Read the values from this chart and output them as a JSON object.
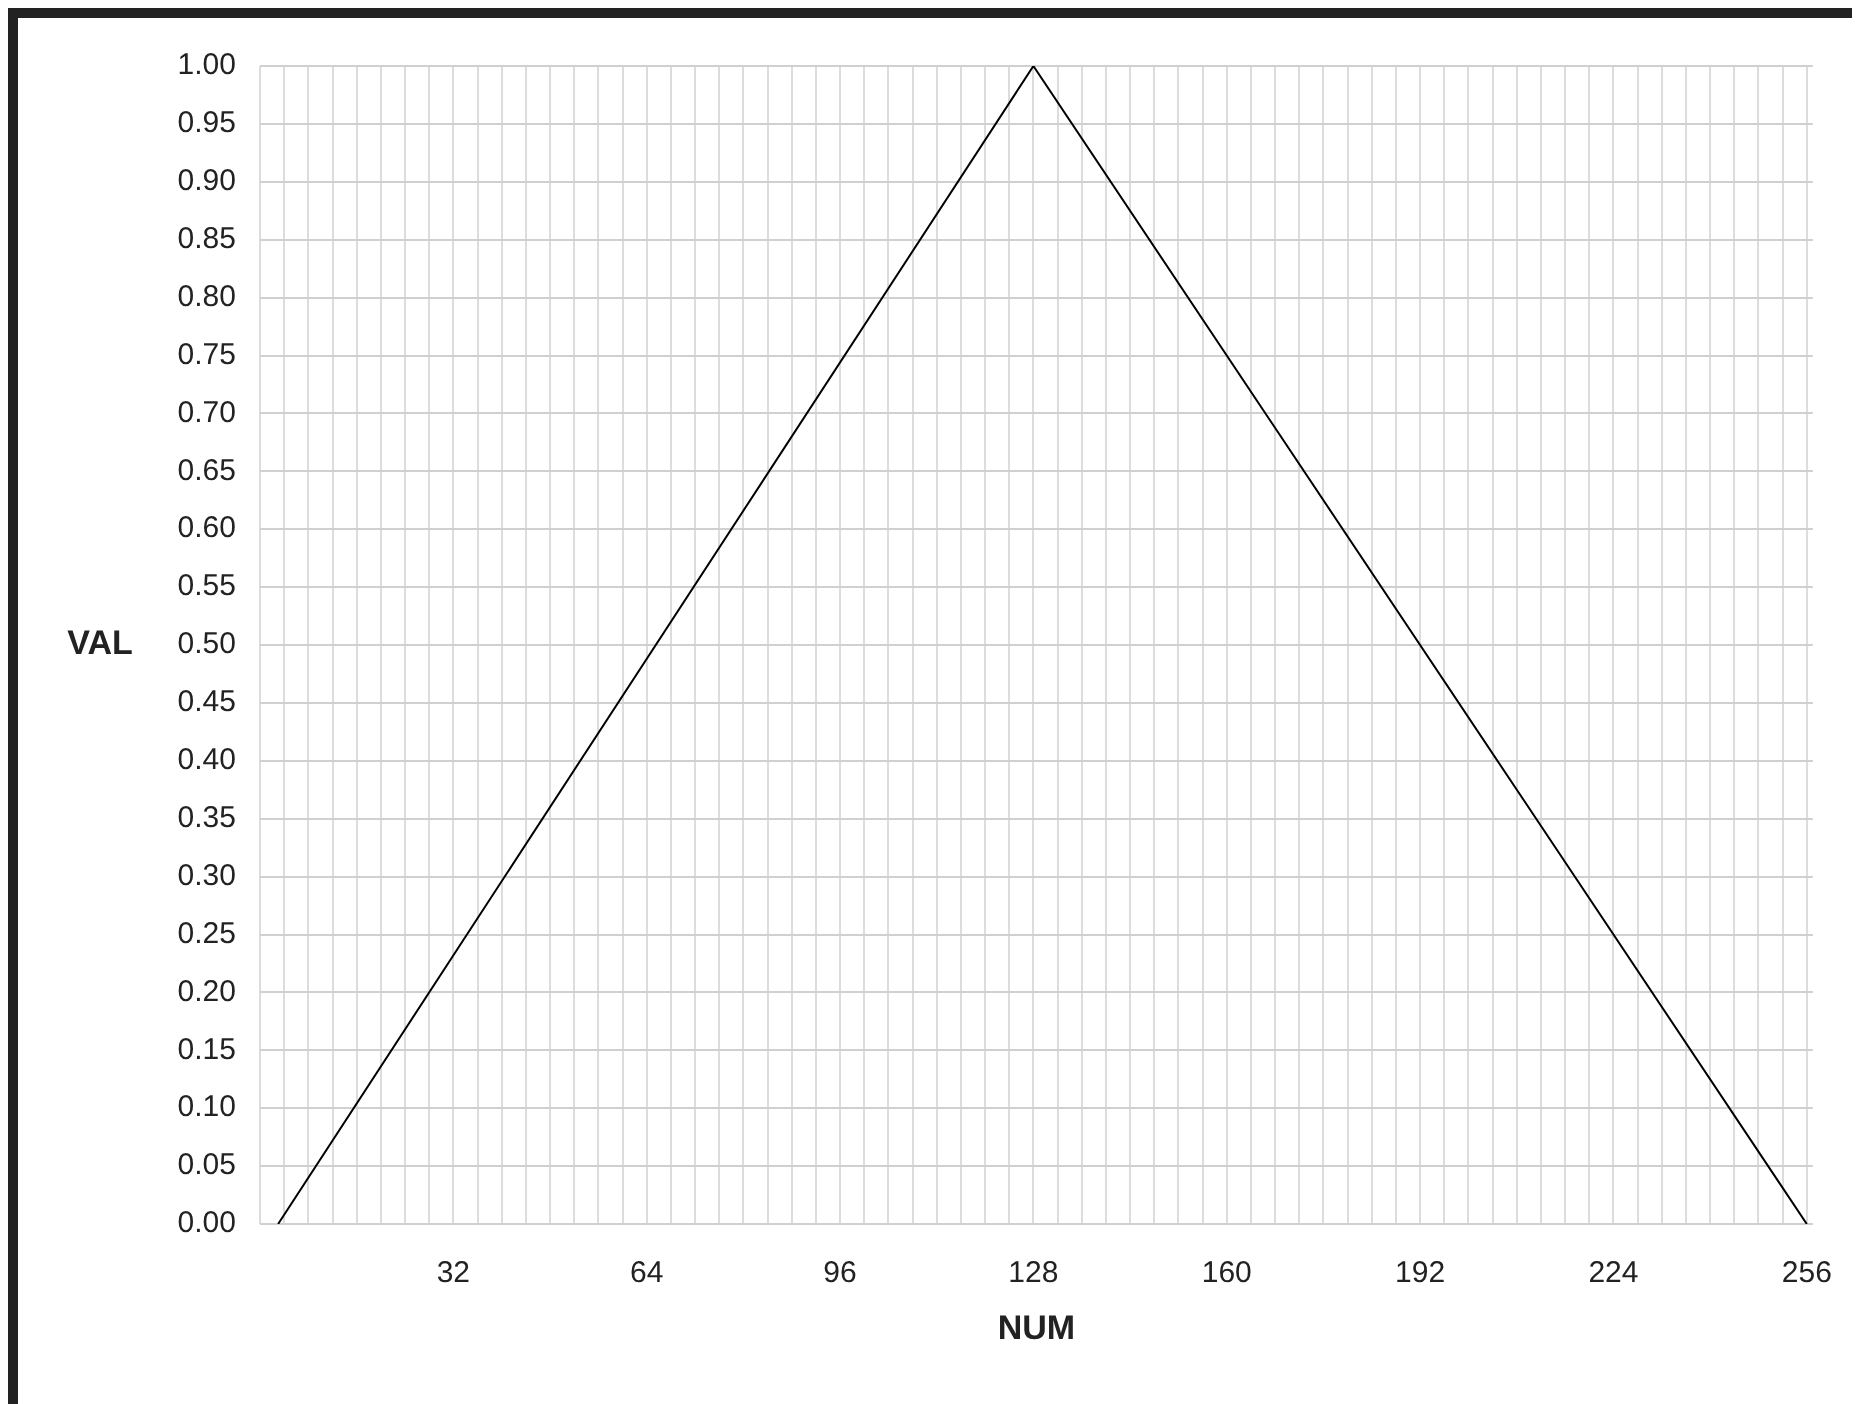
{
  "chart_data": {
    "type": "line",
    "xlabel": "NUM",
    "ylabel": "VAL",
    "x": [
      3,
      128,
      256
    ],
    "series": [
      {
        "color": "#000000",
        "values": [
          0,
          1,
          0
        ]
      }
    ],
    "xlim": [
      0,
      257
    ],
    "xticks": [
      {
        "value": 0,
        "label": null
      },
      {
        "value": 4,
        "label": null
      },
      {
        "value": 8,
        "label": null
      },
      {
        "value": 12,
        "label": null
      },
      {
        "value": 16,
        "label": null
      },
      {
        "value": 20,
        "label": null
      },
      {
        "value": 24,
        "label": null
      },
      {
        "value": 28,
        "label": null
      },
      32,
      {
        "value": 36,
        "label": null
      },
      {
        "value": 40,
        "label": null
      },
      {
        "value": 44,
        "label": null
      },
      {
        "value": 48,
        "label": null
      },
      {
        "value": 52,
        "label": null
      },
      {
        "value": 56,
        "label": null
      },
      {
        "value": 60,
        "label": null
      },
      64,
      {
        "value": 68,
        "label": null
      },
      {
        "value": 72,
        "label": null
      },
      {
        "value": 76,
        "label": null
      },
      {
        "value": 80,
        "label": null
      },
      {
        "value": 84,
        "label": null
      },
      {
        "value": 88,
        "label": null
      },
      {
        "value": 92,
        "label": null
      },
      96,
      {
        "value": 100,
        "label": null
      },
      {
        "value": 104,
        "label": null
      },
      {
        "value": 108,
        "label": null
      },
      {
        "value": 112,
        "label": null
      },
      {
        "value": 116,
        "label": null
      },
      {
        "value": 120,
        "label": null
      },
      {
        "value": 124,
        "label": null
      },
      128,
      {
        "value": 132,
        "label": null
      },
      {
        "value": 136,
        "label": null
      },
      {
        "value": 140,
        "label": null
      },
      {
        "value": 144,
        "label": null
      },
      {
        "value": 148,
        "label": null
      },
      {
        "value": 152,
        "label": null
      },
      {
        "value": 156,
        "label": null
      },
      160,
      {
        "value": 164,
        "label": null
      },
      {
        "value": 168,
        "label": null
      },
      {
        "value": 172,
        "label": null
      },
      {
        "value": 176,
        "label": null
      },
      {
        "value": 180,
        "label": null
      },
      {
        "value": 184,
        "label": null
      },
      {
        "value": 188,
        "label": null
      },
      192,
      {
        "value": 196,
        "label": null
      },
      {
        "value": 200,
        "label": null
      },
      {
        "value": 204,
        "label": null
      },
      {
        "value": 208,
        "label": null
      },
      {
        "value": 212,
        "label": null
      },
      {
        "value": 216,
        "label": null
      },
      {
        "value": 220,
        "label": null
      },
      224,
      {
        "value": 228,
        "label": null
      },
      {
        "value": 232,
        "label": null
      },
      {
        "value": 236,
        "label": null
      },
      {
        "value": 240,
        "label": null
      },
      {
        "value": 244,
        "label": null
      },
      {
        "value": 248,
        "label": null
      },
      {
        "value": 252,
        "label": null
      },
      256
    ],
    "ylim": [
      0,
      1
    ],
    "yticks": [
      {
        "value": 0,
        "label": "0.00"
      },
      {
        "value": 0.05,
        "label": "0.05"
      },
      {
        "value": 0.1,
        "label": "0.10"
      },
      {
        "value": 0.15,
        "label": "0.15"
      },
      {
        "value": 0.2,
        "label": "0.20"
      },
      {
        "value": 0.25,
        "label": "0.25"
      },
      {
        "value": 0.3,
        "label": "0.30"
      },
      {
        "value": 0.35,
        "label": "0.35"
      },
      {
        "value": 0.4,
        "label": "0.40"
      },
      {
        "value": 0.45,
        "label": "0.45"
      },
      {
        "value": 0.5,
        "label": "0.50"
      },
      {
        "value": 0.55,
        "label": "0.55"
      },
      {
        "value": 0.6,
        "label": "0.60"
      },
      {
        "value": 0.65,
        "label": "0.65"
      },
      {
        "value": 0.7,
        "label": "0.70"
      },
      {
        "value": 0.75,
        "label": "0.75"
      },
      {
        "value": 0.8,
        "label": "0.80"
      },
      {
        "value": 0.85,
        "label": "0.85"
      },
      {
        "value": 0.9,
        "label": "0.90"
      },
      {
        "value": 0.95,
        "label": "0.95"
      },
      {
        "value": 1,
        "label": "1.00"
      }
    ],
    "grid": true,
    "legend": false,
    "marker": "none",
    "line_style": "solid"
  }
}
